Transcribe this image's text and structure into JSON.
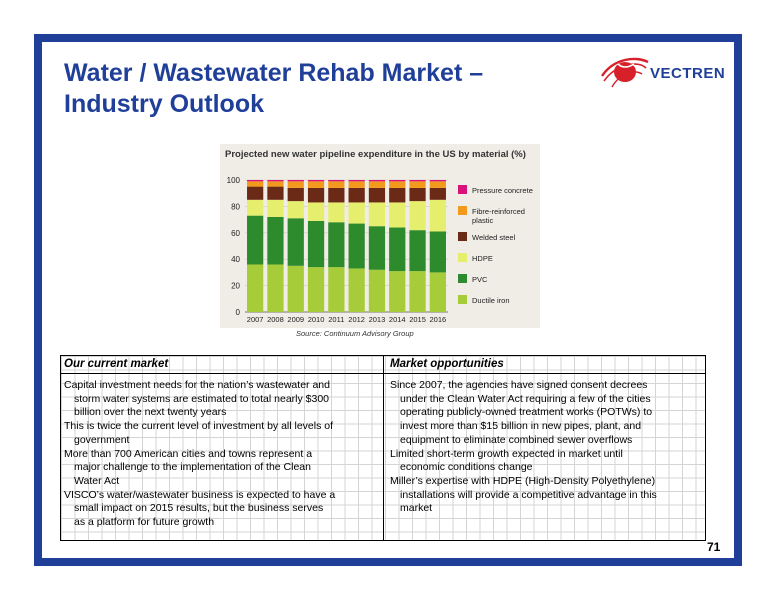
{
  "slide": {
    "title_line1": "Water / Wastewater Rehab Market –",
    "title_line2": "Industry Outlook",
    "logo_text": "VECTREN",
    "page_number": "71",
    "frame_color": "#1f3f99"
  },
  "chart_data": {
    "type": "bar",
    "stacked": true,
    "title": "Projected new water pipeline expenditure in the US by material (%)",
    "categories": [
      "2007",
      "2008",
      "2009",
      "2010",
      "2011",
      "2012",
      "2013",
      "2014",
      "2015",
      "2016"
    ],
    "ylim": [
      0,
      100
    ],
    "yticks": [
      0,
      20,
      40,
      60,
      80,
      100
    ],
    "legend_position": "right",
    "series": [
      {
        "name": "Ductile iron",
        "color": "#a6cc3a",
        "values": [
          36,
          36,
          35,
          34,
          34,
          33,
          32,
          31,
          31,
          30
        ]
      },
      {
        "name": "PVC",
        "color": "#2d8a2d",
        "values": [
          37,
          36,
          36,
          35,
          34,
          34,
          33,
          33,
          31,
          31
        ]
      },
      {
        "name": "HDPE",
        "color": "#e6ee6e",
        "values": [
          12,
          13,
          13,
          14,
          15,
          16,
          18,
          19,
          22,
          24
        ]
      },
      {
        "name": "Welded steel",
        "color": "#6b2a16",
        "values": [
          10,
          10,
          10,
          11,
          11,
          11,
          11,
          11,
          10,
          9
        ]
      },
      {
        "name": "Fibre-reinforced plastic",
        "color": "#f39a1e",
        "values": [
          4,
          4,
          5,
          5,
          5,
          5,
          5,
          5,
          5,
          5
        ]
      },
      {
        "name": "Pressure concrete",
        "color": "#d9127a",
        "values": [
          1,
          1,
          1,
          1,
          1,
          1,
          1,
          1,
          1,
          1
        ]
      }
    ],
    "legend_labels": [
      {
        "line1": "Pressure concrete",
        "line2": "",
        "color": "#d9127a"
      },
      {
        "line1": "Fibre-reinforced",
        "line2": "plastic",
        "color": "#f39a1e"
      },
      {
        "line1": "Welded steel",
        "line2": "",
        "color": "#6b2a16"
      },
      {
        "line1": "HDPE",
        "line2": "",
        "color": "#e6ee6e"
      },
      {
        "line1": "PVC",
        "line2": "",
        "color": "#2d8a2d"
      },
      {
        "line1": "Ductile iron",
        "line2": "",
        "color": "#a6cc3a"
      }
    ],
    "source": "Source: Continuum Advisory Group"
  },
  "table": {
    "left_header": "Our current market",
    "right_header": "Market opportunities",
    "left_bullets": [
      [
        "Capital investment needs for the nation’s wastewater and",
        "storm water systems are estimated to total nearly $300",
        "billion over the next twenty years"
      ],
      [
        "This is twice the current level of investment by all levels of",
        "government"
      ],
      [
        "More than 700 American cities and towns represent a",
        "major challenge to the implementation of the Clean",
        "Water Act"
      ],
      [
        "VISCO’s water/wastewater business is expected to have a",
        "small impact on 2015 results, but the business serves",
        "as a platform for future growth"
      ]
    ],
    "right_bullets": [
      [
        "Since 2007, the agencies have signed consent decrees",
        "under the Clean Water Act requiring a few of the cities",
        "operating publicly-owned treatment works (POTWs) to",
        "invest more than $15 billion in new pipes, plant, and",
        "equipment to eliminate combined sewer overflows"
      ],
      [
        "Limited short-term growth expected in market until",
        "economic conditions change"
      ],
      [
        "Miller’s expertise with HDPE (High-Density Polyethylene)",
        "installations will provide a competitive advantage in this",
        "market"
      ]
    ]
  }
}
